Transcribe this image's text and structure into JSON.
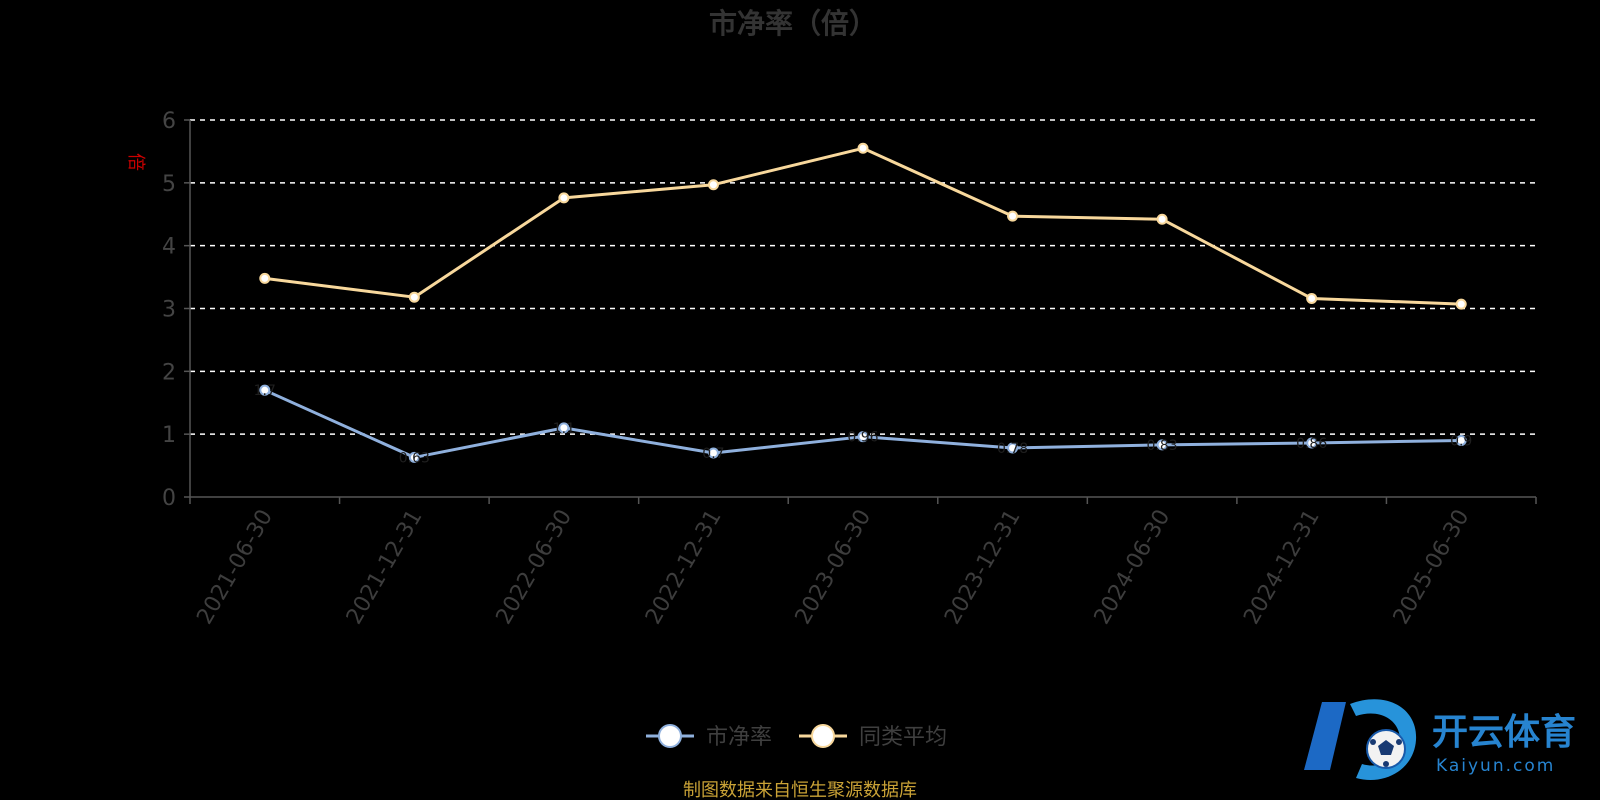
{
  "chart_data": {
    "type": "line",
    "title": "市净率（倍）",
    "ylabel": "倍",
    "ylim": [
      0,
      6
    ],
    "yticks": [
      "0",
      "1",
      "2",
      "3",
      "4",
      "5",
      "6"
    ],
    "grid": true,
    "legend_position": "bottom-center",
    "categories": [
      "2021-06-30",
      "2021-12-31",
      "2022-06-30",
      "2022-12-31",
      "2023-06-30",
      "2023-12-31",
      "2024-06-30",
      "2024-12-31",
      "2025-06-30"
    ],
    "series": [
      {
        "name": "市净率",
        "color": "#8fb0dd",
        "values": [
          1.7,
          0.63,
          1.1,
          0.7,
          0.96,
          0.78,
          0.83,
          0.86,
          0.9
        ],
        "labels": [
          "1.7",
          "0.63",
          "1.1",
          "0.7",
          "0.96",
          "0.78",
          "0.83",
          "0.86",
          "0.9"
        ]
      },
      {
        "name": "同类平均",
        "color": "#f8d89c",
        "values": [
          3.48,
          3.18,
          4.76,
          4.97,
          5.55,
          4.47,
          4.42,
          3.16,
          3.07
        ]
      }
    ]
  },
  "source_note": "制图数据来自恒生聚源数据库",
  "watermark": {
    "brand_cn": "开云体育",
    "brand_en": "Kaiyun.com",
    "icon": "soccer-ball-k-logo"
  },
  "colors": {
    "background": "#000000",
    "axis": "#555555",
    "grid": "#ffffff",
    "source": "#c9a236",
    "brand": "#2a8cdc"
  }
}
